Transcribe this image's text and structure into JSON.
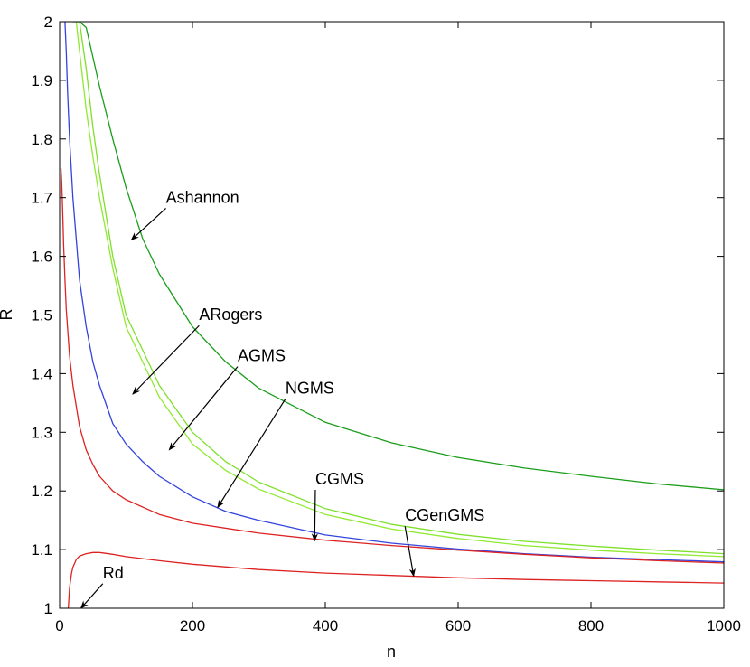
{
  "chart_data": {
    "type": "line",
    "title": "",
    "xlabel": "n",
    "ylabel": "R",
    "xlim": [
      0,
      1000
    ],
    "ylim": [
      1,
      2
    ],
    "xticks": [
      0,
      200,
      400,
      600,
      800,
      1000
    ],
    "xtick_labels": [
      "0",
      "200",
      "400",
      "600",
      "800",
      "1000"
    ],
    "yticks": [
      1,
      1.1,
      1.2,
      1.3,
      1.4,
      1.5,
      1.6,
      1.7,
      1.8,
      1.9,
      2
    ],
    "ytick_labels": [
      "1",
      "1.1",
      "1.2",
      "1.3",
      "1.4",
      "1.5",
      "1.6",
      "1.7",
      "1.8",
      "1.9",
      "2"
    ],
    "grid": false,
    "legend": "none",
    "series": [
      {
        "name": "Ashannon",
        "color": "#1a9e1a",
        "x": [
          20,
          30,
          40,
          60,
          80,
          100,
          125,
          150,
          200,
          250,
          300,
          400,
          500,
          600,
          700,
          800,
          900,
          1000
        ],
        "y": [
          2.0,
          2.0,
          1.99,
          1.89,
          1.8,
          1.717,
          1.63,
          1.57,
          1.48,
          1.42,
          1.375,
          1.317,
          1.282,
          1.257,
          1.239,
          1.225,
          1.212,
          1.202
        ]
      },
      {
        "name": "ARogers",
        "color": "#7ee02a",
        "x": [
          30,
          40,
          50,
          60,
          80,
          100,
          125,
          150,
          200,
          250,
          300,
          400,
          500,
          600,
          700,
          800,
          900,
          1000
        ],
        "y": [
          2.0,
          1.92,
          1.82,
          1.74,
          1.6,
          1.5,
          1.44,
          1.38,
          1.3,
          1.25,
          1.215,
          1.17,
          1.143,
          1.126,
          1.114,
          1.106,
          1.099,
          1.093
        ]
      },
      {
        "name": "AGMS",
        "color": "#8fea30",
        "x": [
          25,
          30,
          40,
          50,
          60,
          80,
          100,
          125,
          150,
          200,
          250,
          300,
          400,
          500,
          600,
          700,
          800,
          900,
          1000
        ],
        "y": [
          2.0,
          1.95,
          1.85,
          1.77,
          1.7,
          1.58,
          1.48,
          1.42,
          1.36,
          1.28,
          1.235,
          1.203,
          1.16,
          1.135,
          1.119,
          1.107,
          1.099,
          1.093,
          1.088
        ]
      },
      {
        "name": "NGMS",
        "color": "#3344dd",
        "x": [
          8,
          10,
          12,
          15,
          20,
          30,
          40,
          50,
          60,
          80,
          100,
          125,
          150,
          200,
          250,
          300,
          400,
          500,
          600,
          700,
          800,
          900,
          1000
        ],
        "y": [
          2.0,
          1.95,
          1.88,
          1.8,
          1.7,
          1.56,
          1.48,
          1.42,
          1.38,
          1.315,
          1.28,
          1.25,
          1.225,
          1.19,
          1.165,
          1.15,
          1.125,
          1.111,
          1.101,
          1.093,
          1.087,
          1.083,
          1.079
        ]
      },
      {
        "name": "CGMS",
        "color": "#dd2222",
        "x": [
          2,
          3,
          4,
          5,
          6,
          8,
          10,
          15,
          20,
          30,
          40,
          50,
          60,
          80,
          100,
          150,
          200,
          300,
          400,
          500,
          600,
          700,
          800,
          900,
          1000
        ],
        "y": [
          1.75,
          1.73,
          1.7,
          1.66,
          1.62,
          1.56,
          1.51,
          1.43,
          1.38,
          1.31,
          1.27,
          1.245,
          1.225,
          1.2,
          1.185,
          1.16,
          1.145,
          1.128,
          1.116,
          1.107,
          1.099,
          1.092,
          1.086,
          1.081,
          1.077
        ]
      },
      {
        "name": "CGenGMS",
        "color": "#dd2222",
        "x": [
          13,
          15,
          18,
          20,
          25,
          30,
          40,
          50,
          60,
          80,
          100,
          150,
          200,
          300,
          400,
          500,
          600,
          700,
          800,
          900,
          1000
        ],
        "y": [
          1.0,
          1.035,
          1.06,
          1.07,
          1.083,
          1.089,
          1.093,
          1.095,
          1.095,
          1.092,
          1.088,
          1.081,
          1.075,
          1.066,
          1.06,
          1.056,
          1.052,
          1.049,
          1.047,
          1.045,
          1.043
        ]
      }
    ],
    "annotations": [
      {
        "text": "Ashannon",
        "text_x": 160,
        "text_y": 1.685,
        "point_x": 108,
        "point_y": 1.628
      },
      {
        "text": "ARogers",
        "text_x": 210,
        "text_y": 1.485,
        "point_x": 110,
        "point_y": 1.365
      },
      {
        "text": "AGMS",
        "text_x": 268,
        "text_y": 1.415,
        "point_x": 165,
        "point_y": 1.27
      },
      {
        "text": "NGMS",
        "text_x": 340,
        "text_y": 1.36,
        "point_x": 238,
        "point_y": 1.172
      },
      {
        "text": "CGMS",
        "text_x": 385,
        "text_y": 1.205,
        "point_x": 384,
        "point_y": 1.115
      },
      {
        "text": "CGenGMS",
        "text_x": 520,
        "text_y": 1.143,
        "point_x": 533,
        "point_y": 1.055
      },
      {
        "text": "Rd",
        "text_x": 65,
        "text_y": 1.045,
        "point_x": 32,
        "point_y": 1.0
      }
    ]
  }
}
